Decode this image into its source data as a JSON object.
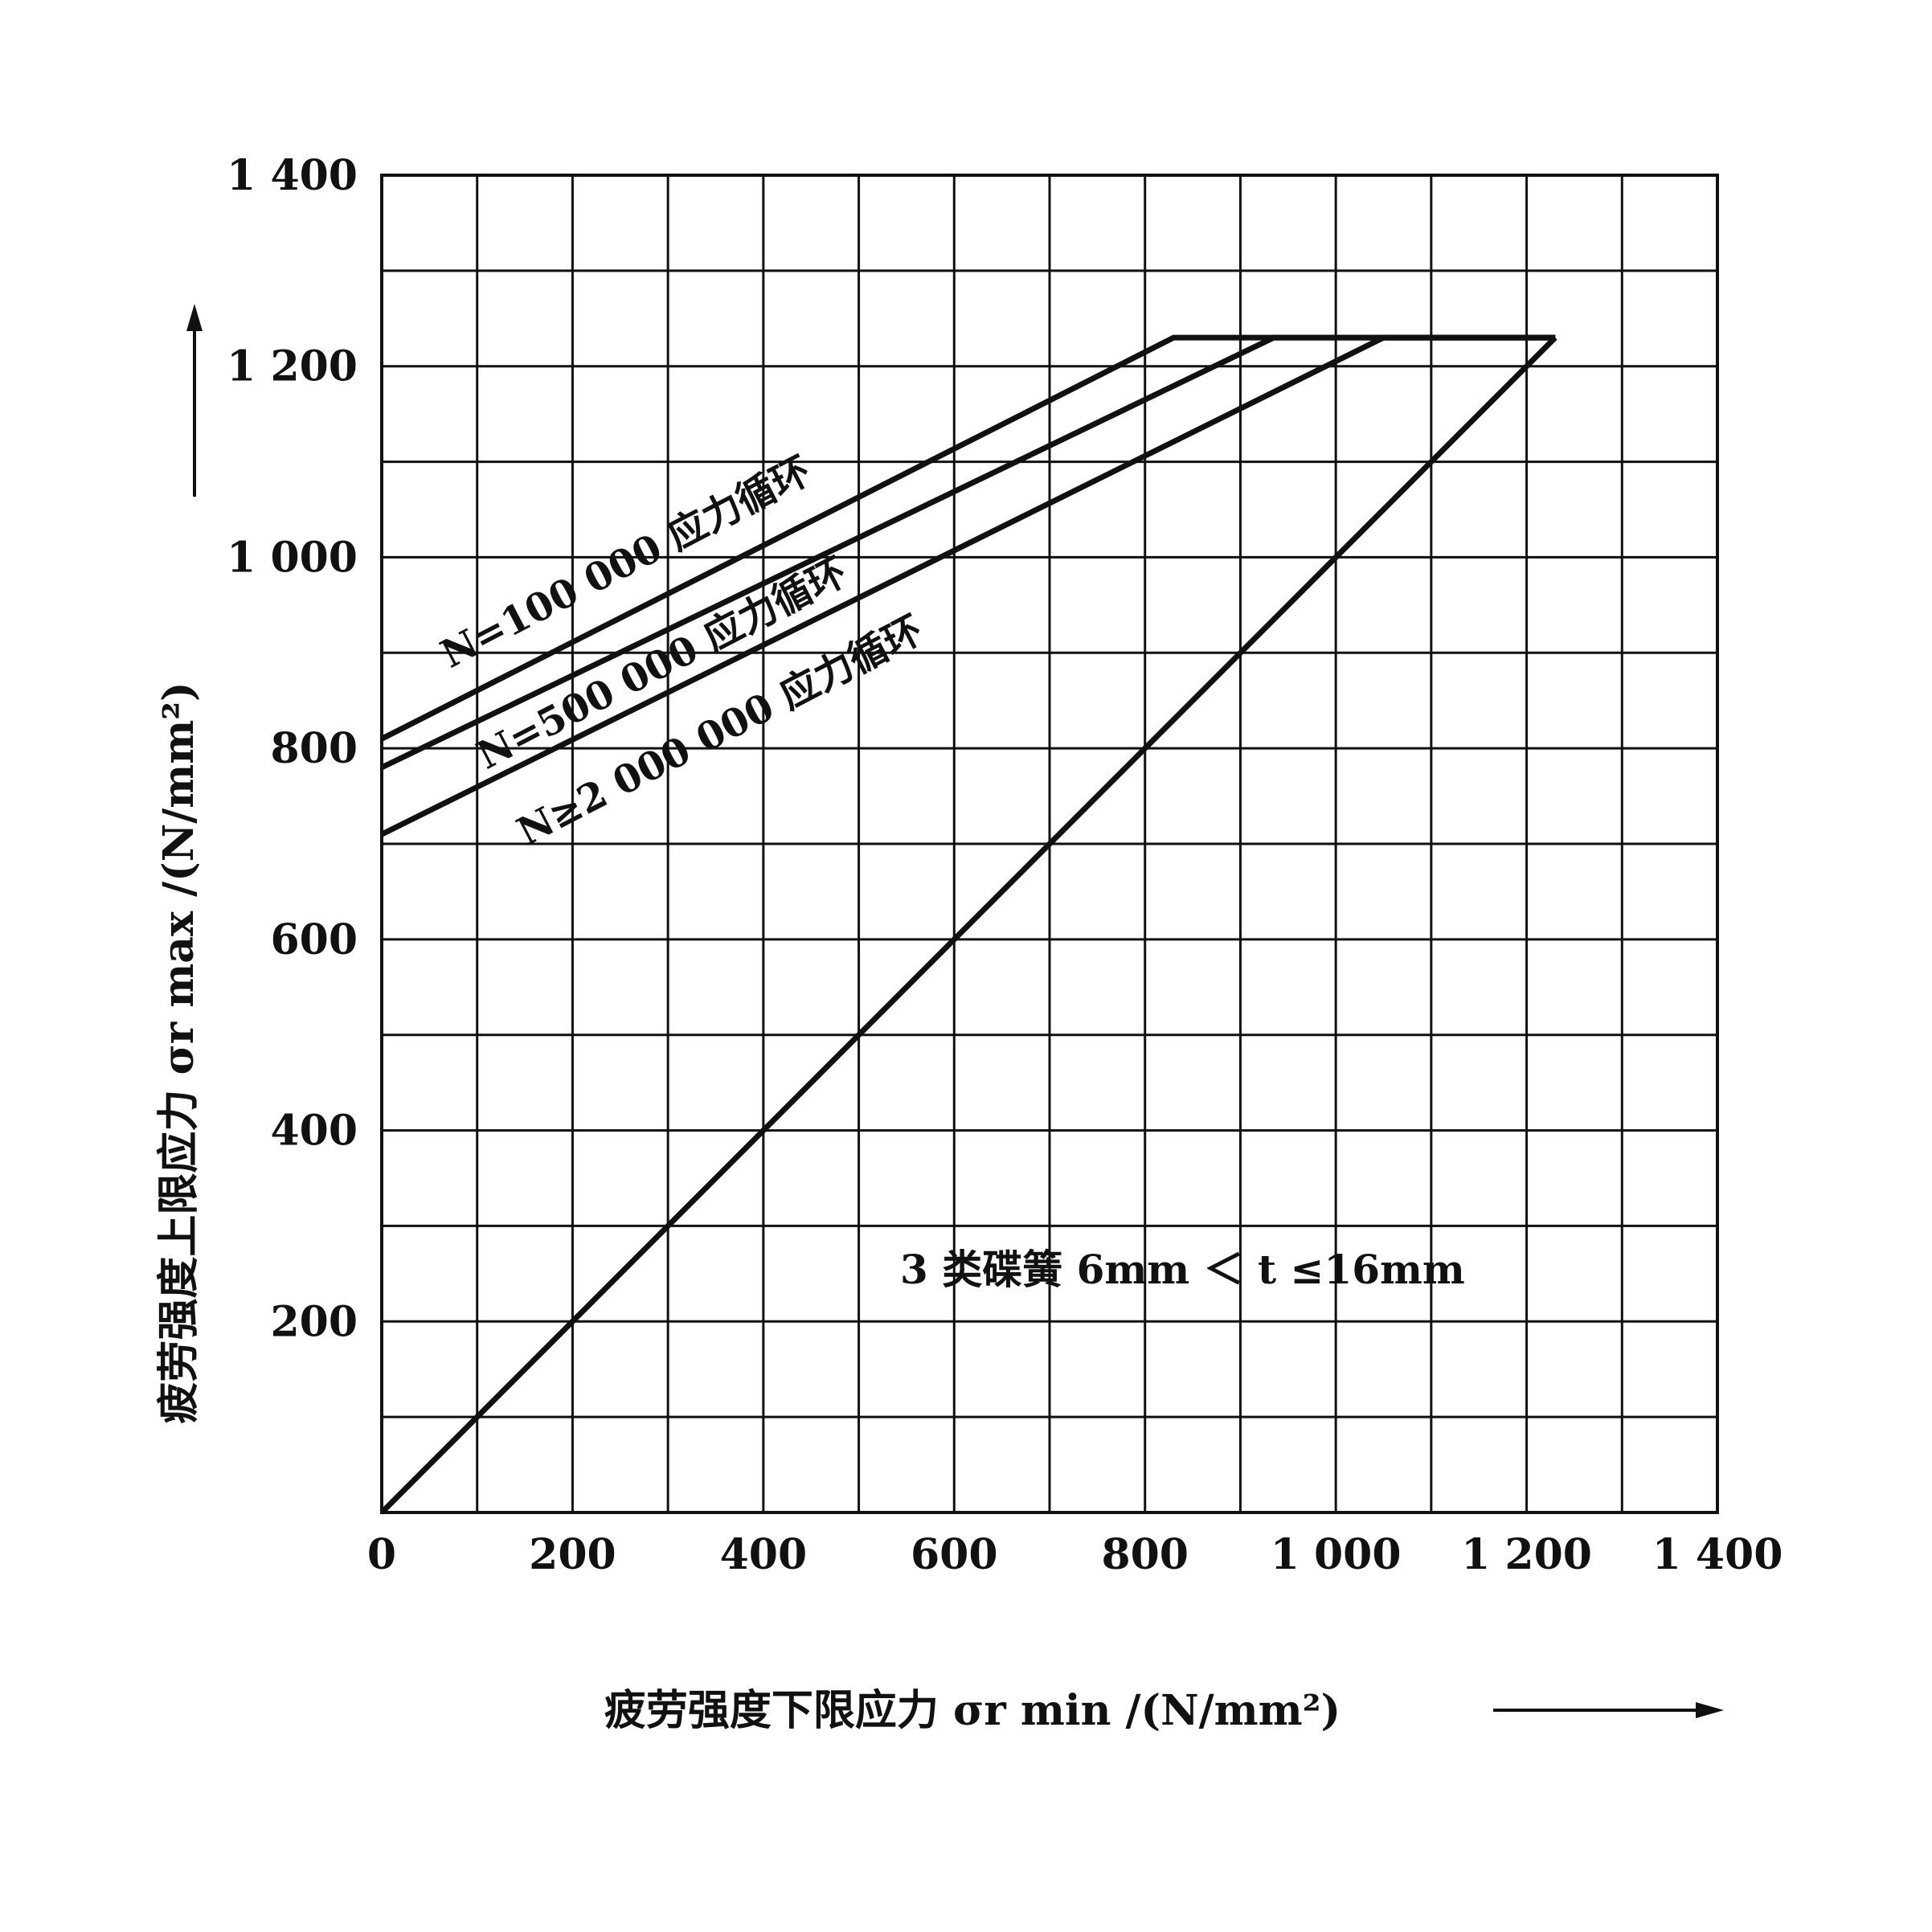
{
  "chart_data": {
    "type": "line",
    "xlabel": "疲劳强度下限应力 σr min /(N/mm²)",
    "ylabel": "疲劳强度上限应力 σr max /(N/mm²)",
    "xlim": [
      0,
      1400
    ],
    "ylim": [
      0,
      1400
    ],
    "x_ticks": [
      {
        "value": 0,
        "label": "0"
      },
      {
        "value": 200,
        "label": "200"
      },
      {
        "value": 400,
        "label": "400"
      },
      {
        "value": 600,
        "label": "600"
      },
      {
        "value": 800,
        "label": "800"
      },
      {
        "value": 1000,
        "label": "1 000"
      },
      {
        "value": 1200,
        "label": "1 200"
      },
      {
        "value": 1400,
        "label": "1 400"
      }
    ],
    "y_ticks": [
      {
        "value": 200,
        "label": "200"
      },
      {
        "value": 400,
        "label": "400"
      },
      {
        "value": 600,
        "label": "600"
      },
      {
        "value": 800,
        "label": "800"
      },
      {
        "value": 1000,
        "label": "1 000"
      },
      {
        "value": 1200,
        "label": "1 200"
      },
      {
        "value": 1400,
        "label": "1 400"
      }
    ],
    "grid_step": 100,
    "grid": true,
    "series": [
      {
        "name": "N=100 000 应力循环",
        "x": [
          0,
          830,
          1230
        ],
        "y": [
          810,
          1230,
          1230
        ]
      },
      {
        "name": "N=500 000 应力循环",
        "x": [
          0,
          935,
          1230
        ],
        "y": [
          780,
          1230,
          1230
        ]
      },
      {
        "name": "N≥2 000 000 应力循环",
        "x": [
          0,
          1050,
          1230
        ],
        "y": [
          710,
          1230,
          1230
        ]
      },
      {
        "name": "",
        "x": [
          0,
          1230
        ],
        "y": [
          0,
          1230
        ]
      }
    ],
    "annotations": [
      "3 类碟簧 6mm ＜ t ≤16mm"
    ]
  }
}
